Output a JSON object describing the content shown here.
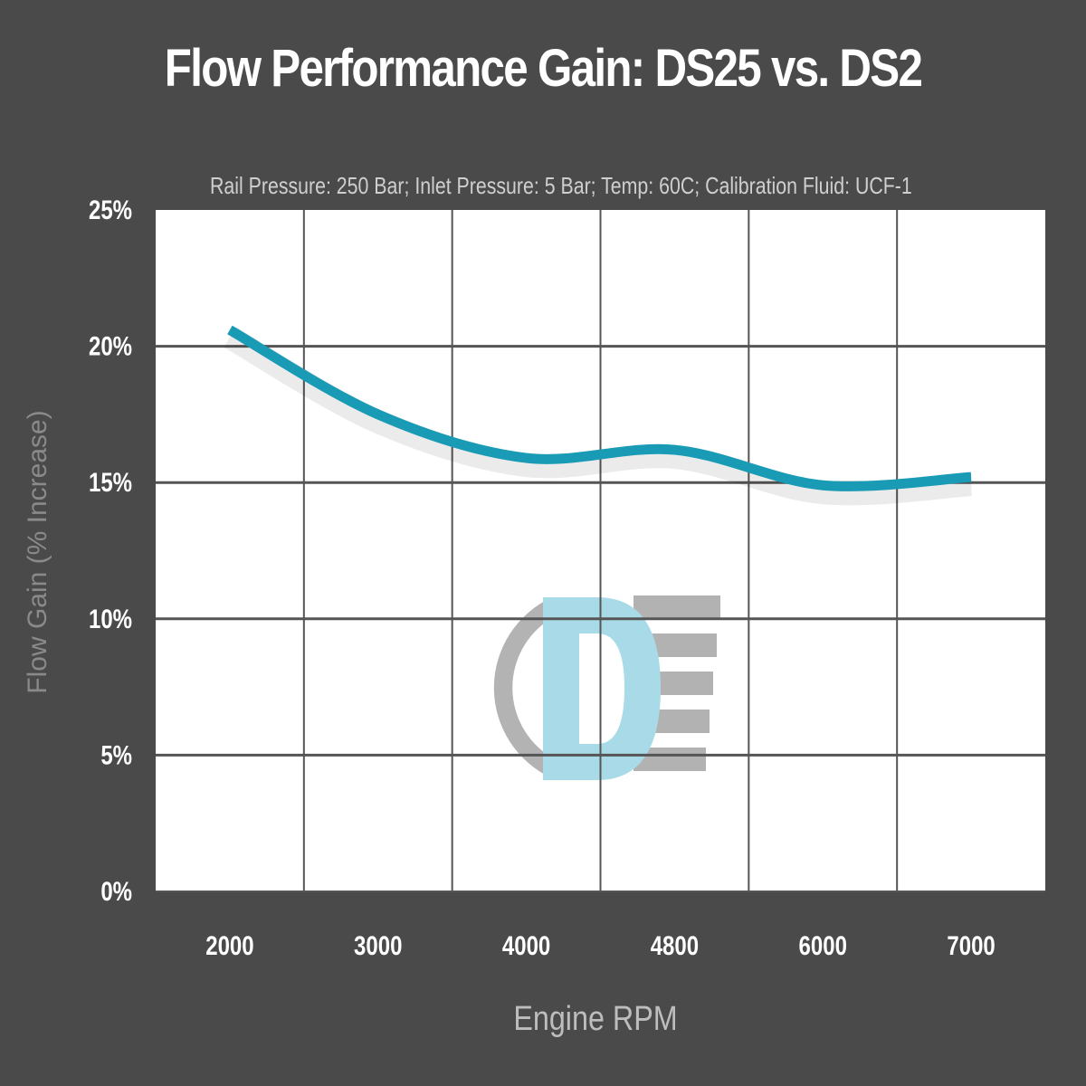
{
  "chart_data": {
    "type": "line",
    "title": "Flow Performance Gain: DS25 vs. DS2",
    "subtitle": "Rail Pressure: 250 Bar; Inlet Pressure: 5 Bar; Temp: 60C; Calibration Fluid: UCF-1",
    "xlabel": "Engine RPM",
    "ylabel": "Flow Gain (% Increase)",
    "categories": [
      "2000",
      "3000",
      "4000",
      "4800",
      "6000",
      "7000"
    ],
    "values": [
      20.6,
      17.5,
      15.9,
      16.2,
      14.9,
      15.2
    ],
    "ylim": [
      0,
      25
    ],
    "yticks": [
      "0%",
      "5%",
      "10%",
      "15%",
      "20%",
      "25%"
    ],
    "grid": true,
    "line_color": "#1a9bb5",
    "background_color": "#4a4a4a",
    "plot_background": "#ffffff",
    "watermark": "DE"
  }
}
